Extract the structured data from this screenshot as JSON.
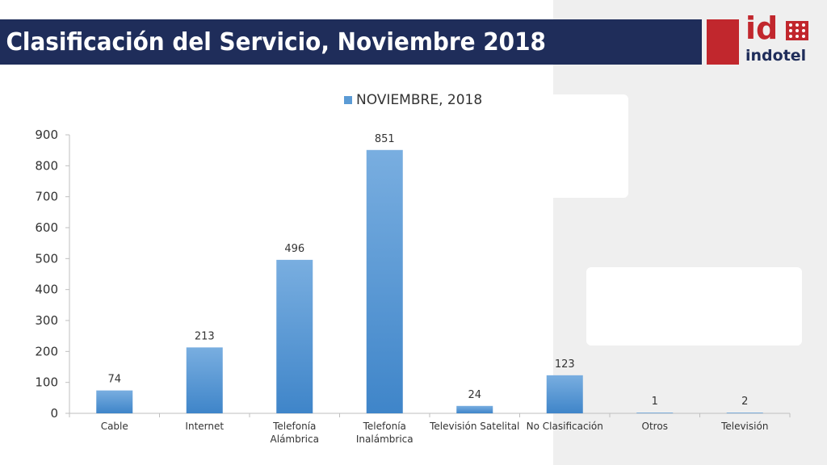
{
  "header": {
    "title": "Clasificación del Servicio, Noviembre 2018"
  },
  "logo": {
    "mark": "id",
    "name": "indotel",
    "brand_color": "#c1272d",
    "navy": "#1f2d5a"
  },
  "chart_data": {
    "type": "bar",
    "categories": [
      "Cable",
      "Internet",
      "Telefonía Alámbrica",
      "Telefonía Inalámbrica",
      "Televisión Satelital",
      "No Clasificación",
      "Otros",
      "Televisión"
    ],
    "category_lines": [
      [
        "Cable"
      ],
      [
        "Internet"
      ],
      [
        "Telefonía",
        "Alámbrica"
      ],
      [
        "Telefonía",
        "Inalámbrica"
      ],
      [
        "Televisión Satelital"
      ],
      [
        "No Clasificación"
      ],
      [
        "Otros"
      ],
      [
        "Televisión"
      ]
    ],
    "series": [
      {
        "name": "NOVIEMBRE, 2018",
        "values": [
          74,
          213,
          496,
          851,
          24,
          123,
          1,
          2
        ],
        "color": "#5b9bd5"
      }
    ],
    "yticks": [
      0,
      100,
      200,
      300,
      400,
      500,
      600,
      700,
      800,
      900
    ],
    "ylim": [
      0,
      900
    ],
    "grid": false,
    "legend_position": "top-center",
    "title": "",
    "xlabel": "",
    "ylabel": ""
  }
}
